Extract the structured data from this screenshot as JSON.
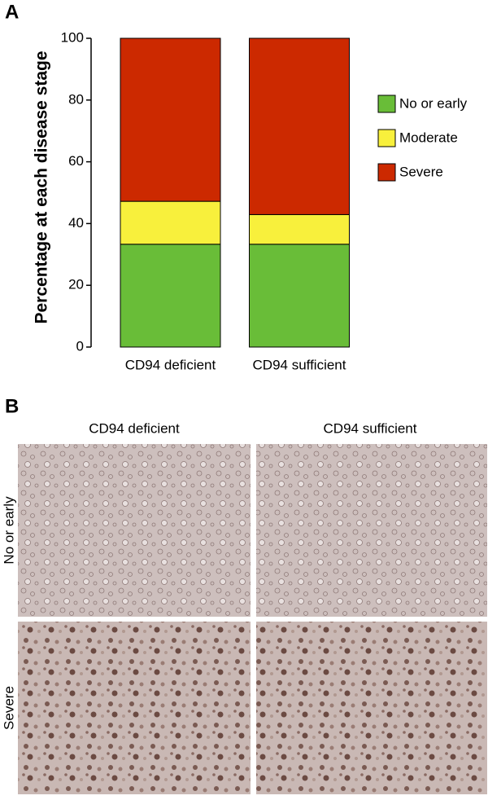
{
  "chart_data": {
    "type": "stacked_bar",
    "panel_label": "A",
    "ylabel": "Percentage at each disease stage",
    "categories": [
      "CD94 deficient",
      "CD94 sufficient"
    ],
    "series": [
      {
        "name": "No or early",
        "color": "#69bd38",
        "values": [
          33.3,
          33.3
        ]
      },
      {
        "name": "Moderate",
        "color": "#f8f03c",
        "values": [
          13.9,
          9.6
        ]
      },
      {
        "name": "Severe",
        "color": "#cc2900",
        "values": [
          52.8,
          57.1
        ]
      }
    ],
    "ylim": [
      0,
      100
    ],
    "yticks": [
      0,
      20,
      40,
      60,
      80,
      100
    ],
    "legend": "right"
  },
  "panel_b": {
    "label": "B",
    "columns": [
      "CD94 deficient",
      "CD94 sufficient"
    ],
    "rows": [
      "No or early",
      "Severe"
    ]
  }
}
